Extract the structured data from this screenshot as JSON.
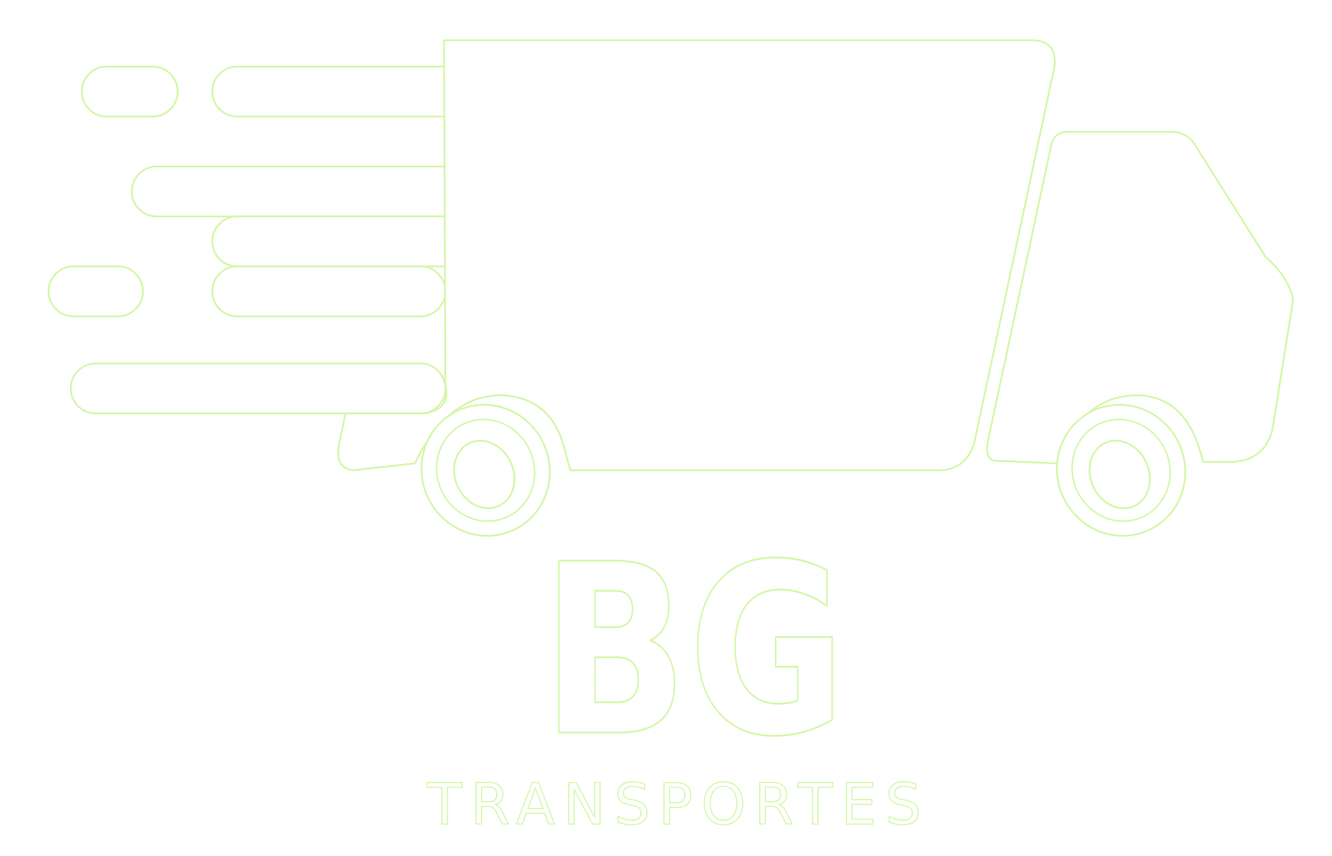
{
  "logo": {
    "monogram": "BG",
    "tagline": "TRANSPORTES",
    "outline_color": "#d4f7a8",
    "fill_color": "#ffffff",
    "icon": "delivery-truck-icon"
  }
}
